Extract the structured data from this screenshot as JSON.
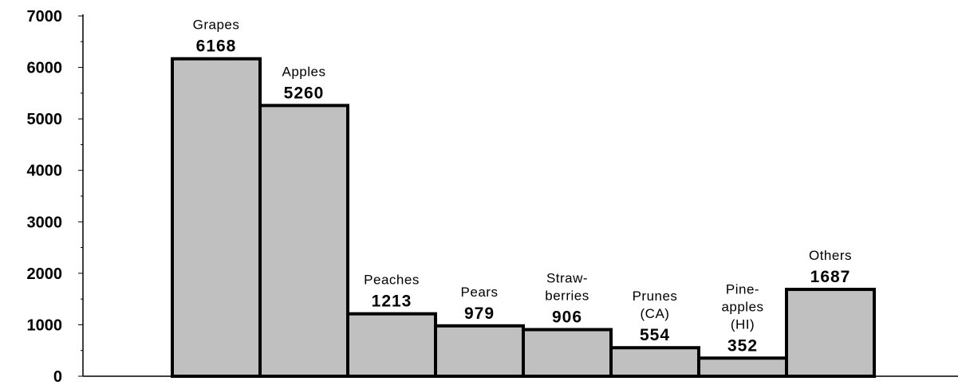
{
  "chart_data": {
    "type": "bar",
    "title": "",
    "xlabel": "",
    "ylabel": "",
    "ylim": [
      0,
      7000
    ],
    "yticks": [
      0,
      1000,
      2000,
      3000,
      4000,
      5000,
      6000,
      7000
    ],
    "ytick_labels": [
      "0",
      "1000",
      "2000",
      "3000",
      "4000",
      "5000",
      "6000",
      "7000"
    ],
    "grid": false,
    "legend": "none",
    "bar_color": "#c0c0c0",
    "bar_outline_color": "#000000",
    "categories": [
      [
        "Grapes"
      ],
      [
        "Apples"
      ],
      [
        "Peaches"
      ],
      [
        "Pears"
      ],
      [
        "Straw-",
        "berries"
      ],
      [
        "Prunes",
        "(CA)"
      ],
      [
        "Pine-",
        "apples",
        "(HI)"
      ],
      [
        "Others"
      ]
    ],
    "values": [
      6168,
      5260,
      1213,
      979,
      906,
      554,
      352,
      1687
    ],
    "value_labels": [
      "6168",
      "5260",
      "1213",
      "979",
      "906",
      "554",
      "352",
      "1687"
    ]
  }
}
